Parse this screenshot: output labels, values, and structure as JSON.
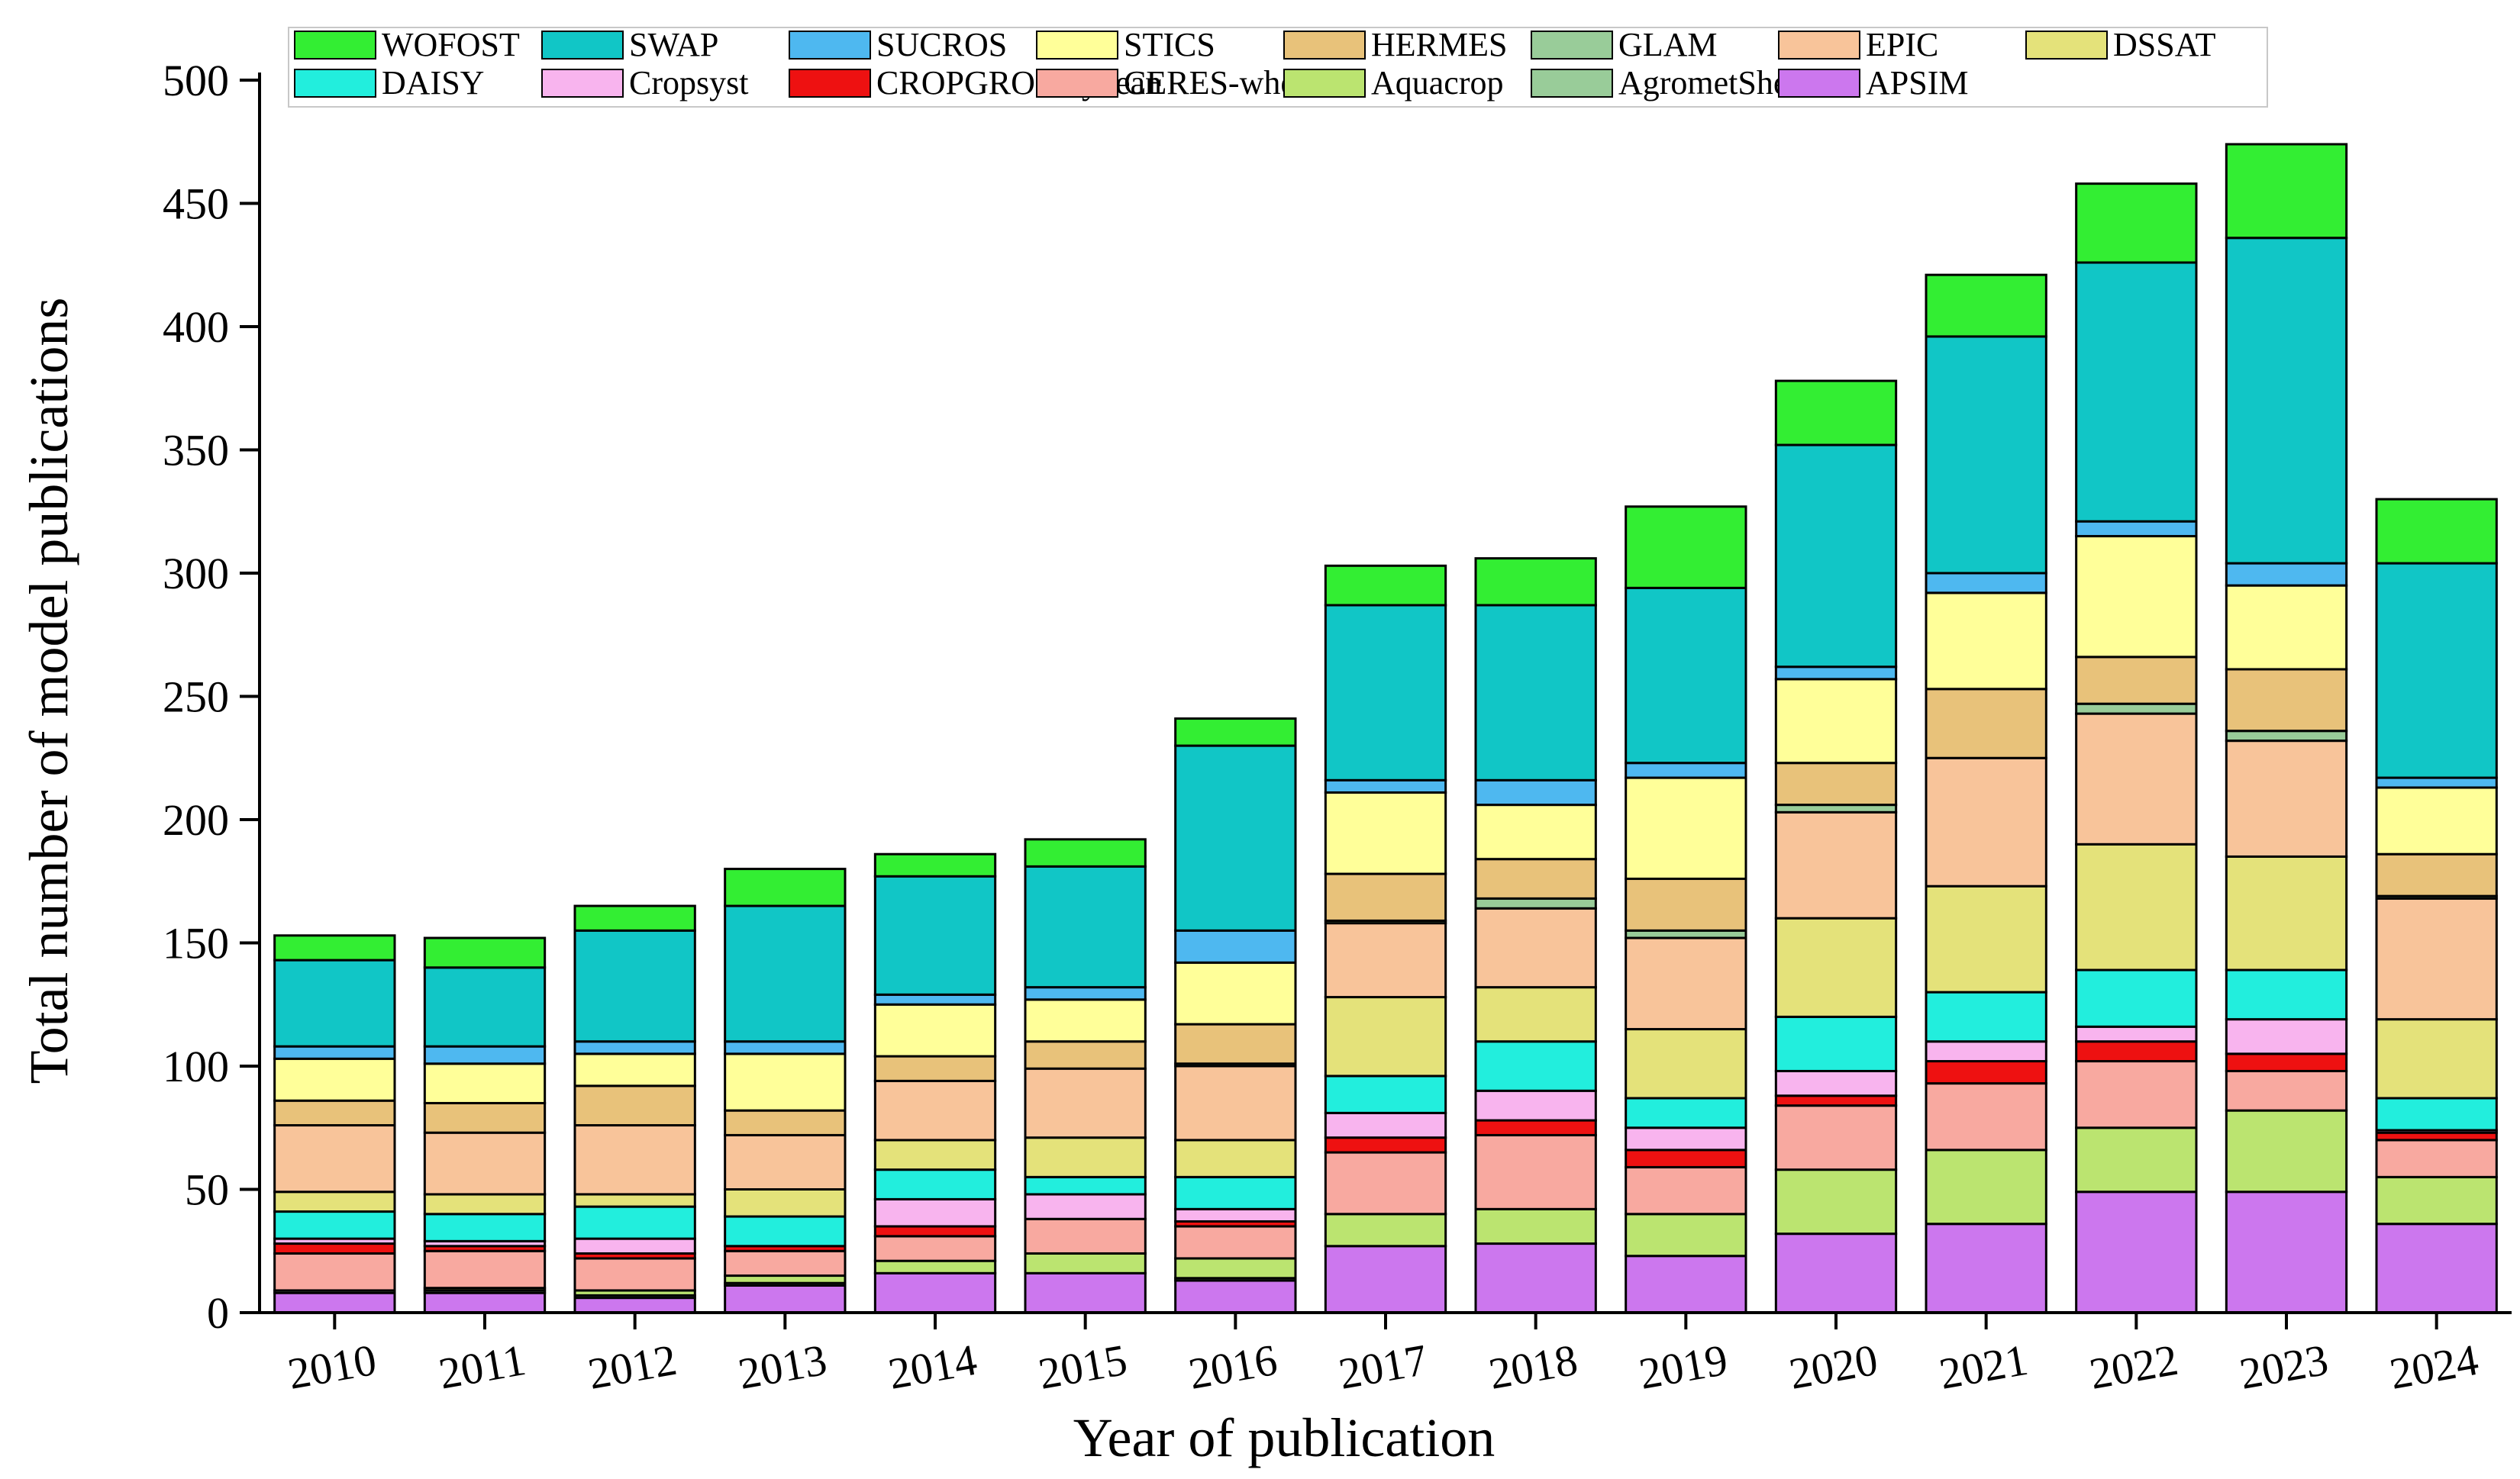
{
  "chart_data": {
    "type": "bar",
    "stacked": true,
    "title": "",
    "xlabel": "Year of publication",
    "ylabel": "Total number of model publications",
    "ylim": [
      0,
      500
    ],
    "yticks": [
      0,
      50,
      100,
      150,
      200,
      250,
      300,
      350,
      400,
      450,
      500
    ],
    "grid": false,
    "legend_position": "top",
    "categories": [
      "2010",
      "2011",
      "2012",
      "2013",
      "2014",
      "2015",
      "2016",
      "2017",
      "2018",
      "2019",
      "2020",
      "2021",
      "2022",
      "2023",
      "2024"
    ],
    "series": [
      {
        "name": "APSIM",
        "color": "#cc77ee",
        "values": [
          8,
          8,
          6,
          11,
          16,
          16,
          13,
          27,
          28,
          23,
          32,
          36,
          49,
          49,
          36
        ]
      },
      {
        "name": "AgrometShell",
        "color": "#99cc99",
        "values": [
          1,
          1,
          1,
          1,
          0,
          0,
          1,
          0,
          0,
          0,
          0,
          0,
          0,
          0,
          0
        ]
      },
      {
        "name": "Aquacrop",
        "color": "#bbe470",
        "values": [
          0,
          1,
          2,
          3,
          5,
          8,
          8,
          13,
          14,
          17,
          26,
          30,
          26,
          33,
          19
        ]
      },
      {
        "name": "CERES-wheat",
        "color": "#f8a9a0",
        "values": [
          15,
          15,
          13,
          10,
          10,
          14,
          13,
          25,
          30,
          19,
          26,
          27,
          27,
          16,
          15
        ]
      },
      {
        "name": "CROPGRO-Soybean",
        "color": "#ee1111",
        "values": [
          4,
          2,
          2,
          2,
          4,
          0,
          2,
          6,
          6,
          7,
          4,
          9,
          8,
          7,
          3
        ]
      },
      {
        "name": "Cropsyst",
        "color": "#f8b4ee",
        "values": [
          2,
          2,
          6,
          0,
          11,
          10,
          5,
          10,
          12,
          9,
          10,
          8,
          6,
          14,
          1
        ]
      },
      {
        "name": "DAISY",
        "color": "#22eedd",
        "values": [
          11,
          11,
          13,
          12,
          12,
          7,
          13,
          15,
          20,
          12,
          22,
          20,
          23,
          20,
          13
        ]
      },
      {
        "name": "DSSAT",
        "color": "#e4e27a",
        "values": [
          8,
          8,
          5,
          11,
          12,
          16,
          15,
          32,
          22,
          28,
          40,
          43,
          51,
          46,
          32
        ]
      },
      {
        "name": "EPIC",
        "color": "#f8c49a",
        "values": [
          27,
          25,
          28,
          22,
          24,
          28,
          30,
          30,
          32,
          37,
          43,
          52,
          53,
          47,
          49
        ]
      },
      {
        "name": "GLAM",
        "color": "#99cc99",
        "values": [
          0,
          0,
          0,
          0,
          0,
          0,
          1,
          1,
          4,
          3,
          3,
          0,
          4,
          4,
          1
        ]
      },
      {
        "name": "HERMES",
        "color": "#e8c27a",
        "values": [
          10,
          12,
          16,
          10,
          10,
          11,
          16,
          19,
          16,
          21,
          17,
          28,
          19,
          25,
          17
        ]
      },
      {
        "name": "STICS",
        "color": "#ffff99",
        "values": [
          17,
          16,
          13,
          23,
          21,
          17,
          25,
          33,
          22,
          41,
          34,
          39,
          49,
          34,
          27
        ]
      },
      {
        "name": "SUCROS",
        "color": "#4eb8f0",
        "values": [
          5,
          7,
          5,
          5,
          4,
          5,
          13,
          5,
          10,
          6,
          5,
          8,
          6,
          9,
          4
        ]
      },
      {
        "name": "SWAP",
        "color": "#11c6c6",
        "values": [
          35,
          32,
          45,
          55,
          48,
          49,
          75,
          71,
          71,
          71,
          90,
          96,
          105,
          132,
          87
        ]
      },
      {
        "name": "WOFOST",
        "color": "#33ee33",
        "values": [
          10,
          12,
          10,
          15,
          9,
          11,
          11,
          16,
          19,
          33,
          26,
          25,
          32,
          38,
          26
        ]
      }
    ],
    "legend_rows": [
      [
        "WOFOST",
        "SWAP",
        "SUCROS",
        "STICS",
        "HERMES",
        "GLAM",
        "EPIC",
        "DSSAT"
      ],
      [
        "DAISY",
        "Cropsyst",
        "CROPGRO-Soybean",
        "CERES-wheat",
        "Aquacrop",
        "AgrometShell",
        "APSIM"
      ]
    ]
  }
}
